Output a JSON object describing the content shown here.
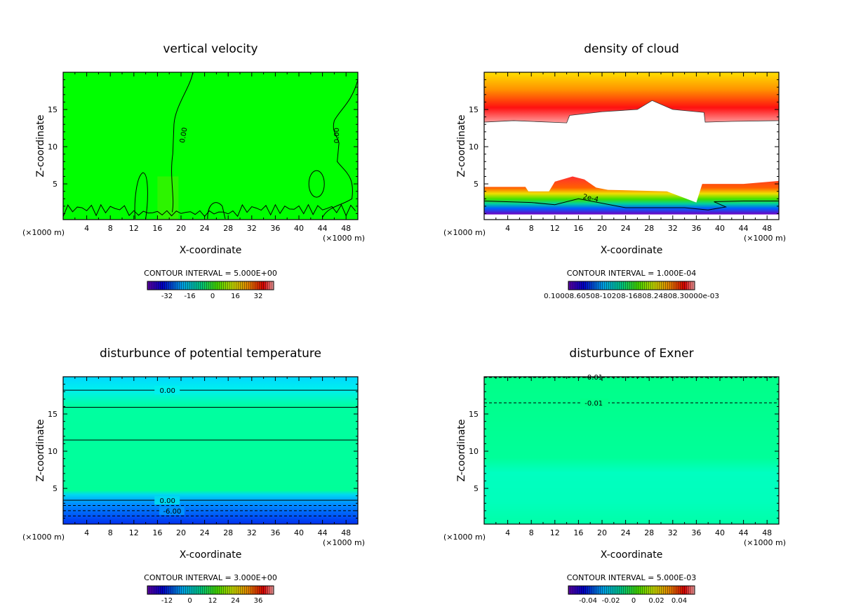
{
  "chart_data": [
    {
      "type": "heatmap",
      "title": "vertical velocity",
      "xlabel": "X-coordinate",
      "ylabel": "Z-coordinate",
      "x_unit_left": "(×1000 m)",
      "x_unit_right": "(×1000 m)",
      "xlim": [
        0,
        50
      ],
      "ylim": [
        0.2,
        20
      ],
      "xticks": [
        "4",
        "8",
        "12",
        "16",
        "20",
        "24",
        "28",
        "32",
        "36",
        "40",
        "44",
        "48"
      ],
      "yticks": [
        "5",
        "10",
        "15"
      ],
      "contour_interval": "CONTOUR INTERVAL = 5.000E+00",
      "colorbar_ticks": [
        "-32",
        "-16",
        "0",
        "16",
        "32"
      ],
      "contour_labels": [
        "0.00",
        "0.00"
      ],
      "field": "mostly zero (green), small cells near surface"
    },
    {
      "type": "heatmap",
      "title": "density of cloud",
      "xlabel": "X-coordinate",
      "ylabel": "Z-coordinate",
      "x_unit_left": "(×1000 m)",
      "x_unit_right": "(×1000 m)",
      "xlim": [
        0,
        50
      ],
      "ylim": [
        0.2,
        20
      ],
      "xticks": [
        "4",
        "8",
        "12",
        "16",
        "20",
        "24",
        "28",
        "32",
        "36",
        "40",
        "44",
        "48"
      ],
      "yticks": [
        "5",
        "10",
        "15"
      ],
      "contour_interval": "CONTOUR INTERVAL = 1.000E-04",
      "colorbar_ticks_text": "0.10008.60508-10208-16808.24808.30000e-03",
      "contour_labels": [
        "2e-4"
      ],
      "field": "upper cloud layer z≈13–20, lower cloud layer z≈0.5–5"
    },
    {
      "type": "heatmap",
      "title": "disturbunce of potential temperature",
      "xlabel": "X-coordinate",
      "ylabel": "Z-coordinate",
      "x_unit_left": "(×1000 m)",
      "x_unit_right": "(×1000 m)",
      "xlim": [
        0,
        50
      ],
      "ylim": [
        0.2,
        20
      ],
      "xticks": [
        "4",
        "8",
        "12",
        "16",
        "20",
        "24",
        "28",
        "32",
        "36",
        "40",
        "44",
        "48"
      ],
      "yticks": [
        "5",
        "10",
        "15"
      ],
      "contour_interval": "CONTOUR INTERVAL = 3.000E+00",
      "colorbar_ticks": [
        "-12",
        "0",
        "12",
        "24",
        "36"
      ],
      "contour_labels": [
        "0.00",
        "0.00",
        "-6.00"
      ],
      "field": "horizontally stratified"
    },
    {
      "type": "heatmap",
      "title": "disturbunce of Exner",
      "xlabel": "X-coordinate",
      "ylabel": "Z-coordinate",
      "x_unit_left": "(×1000 m)",
      "x_unit_right": "(×1000 m)",
      "xlim": [
        0,
        50
      ],
      "ylim": [
        0.2,
        20
      ],
      "xticks": [
        "4",
        "8",
        "12",
        "16",
        "20",
        "24",
        "28",
        "32",
        "36",
        "40",
        "44",
        "48"
      ],
      "yticks": [
        "5",
        "10",
        "15"
      ],
      "contour_interval": "CONTOUR INTERVAL = 5.000E-03",
      "colorbar_ticks": [
        "-0.04",
        "-0.02",
        "0",
        "0.02",
        "0.04"
      ],
      "contour_labels": [
        "-0.01",
        "-0.01"
      ],
      "field": "nearly uniform, horizontally stratified"
    }
  ],
  "colors": {
    "velocity_fill": "#00ff00",
    "theta_top": "#00d8ff",
    "theta_mid": "#00ff99",
    "theta_low": "#0044ff",
    "exner_fill": "#00ff88",
    "exner_low": "#00ffbb"
  }
}
